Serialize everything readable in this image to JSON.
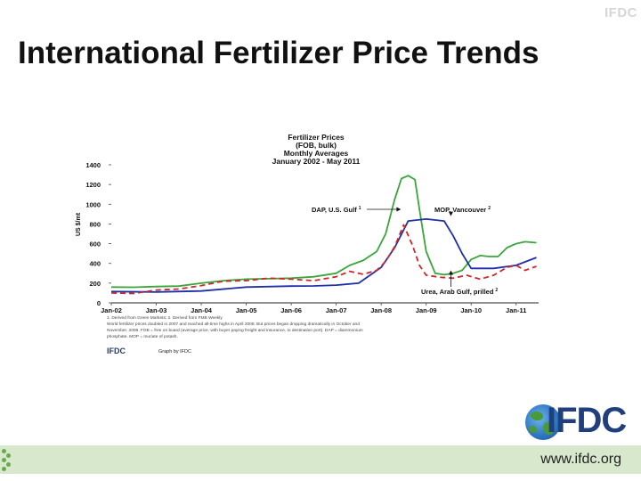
{
  "corner_logo": "IFDC",
  "slide_title": "International Fertilizer Price Trends",
  "brand_logo": "IFDC",
  "website": "www.ifdc.org",
  "colors": {
    "dap": "#3aa53a",
    "mop": "#1f2fa8",
    "urea": "#d0262a"
  },
  "chart_data": {
    "type": "line",
    "title": [
      "Fertilizer Prices",
      "(FOB, bulk)",
      "Monthly Averages",
      "January 2002 - May 2011"
    ],
    "ylabel": "US $/mt",
    "ylim": [
      0,
      1400
    ],
    "yticks": [
      0,
      200,
      400,
      600,
      800,
      1000,
      1200,
      1400
    ],
    "xlim": [
      2002.0,
      2011.5
    ],
    "xticks": [
      {
        "x": 2002,
        "label": "Jan-02"
      },
      {
        "x": 2003,
        "label": "Jan-03"
      },
      {
        "x": 2004,
        "label": "Jan-04"
      },
      {
        "x": 2005,
        "label": "Jan-05"
      },
      {
        "x": 2006,
        "label": "Jan-06"
      },
      {
        "x": 2007,
        "label": "Jan-07"
      },
      {
        "x": 2008,
        "label": "Jan-08"
      },
      {
        "x": 2009,
        "label": "Jan-09"
      },
      {
        "x": 2010,
        "label": "Jan-10"
      },
      {
        "x": 2011,
        "label": "Jan-11"
      }
    ],
    "series": [
      {
        "name": "DAP, U.S. Gulf",
        "color": "#3aa53a",
        "dash": "",
        "points": [
          [
            2002.0,
            160
          ],
          [
            2002.5,
            158
          ],
          [
            2003.0,
            165
          ],
          [
            2003.5,
            170
          ],
          [
            2004.0,
            200
          ],
          [
            2004.5,
            225
          ],
          [
            2005.0,
            240
          ],
          [
            2005.5,
            245
          ],
          [
            2006.0,
            250
          ],
          [
            2006.5,
            265
          ],
          [
            2007.0,
            300
          ],
          [
            2007.3,
            380
          ],
          [
            2007.6,
            430
          ],
          [
            2007.9,
            520
          ],
          [
            2008.1,
            700
          ],
          [
            2008.3,
            1050
          ],
          [
            2008.45,
            1260
          ],
          [
            2008.6,
            1290
          ],
          [
            2008.75,
            1250
          ],
          [
            2008.85,
            950
          ],
          [
            2009.0,
            520
          ],
          [
            2009.2,
            300
          ],
          [
            2009.4,
            285
          ],
          [
            2009.6,
            300
          ],
          [
            2009.8,
            330
          ],
          [
            2010.0,
            440
          ],
          [
            2010.2,
            480
          ],
          [
            2010.4,
            470
          ],
          [
            2010.6,
            470
          ],
          [
            2010.8,
            560
          ],
          [
            2011.0,
            600
          ],
          [
            2011.2,
            620
          ],
          [
            2011.45,
            610
          ]
        ]
      },
      {
        "name": "MOP, Vancouver",
        "color": "#1f2fa8",
        "dash": "",
        "points": [
          [
            2002.0,
            115
          ],
          [
            2003.0,
            110
          ],
          [
            2004.0,
            120
          ],
          [
            2005.0,
            160
          ],
          [
            2006.0,
            170
          ],
          [
            2006.5,
            172
          ],
          [
            2007.0,
            180
          ],
          [
            2007.5,
            200
          ],
          [
            2008.0,
            360
          ],
          [
            2008.3,
            560
          ],
          [
            2008.6,
            830
          ],
          [
            2009.0,
            850
          ],
          [
            2009.4,
            830
          ],
          [
            2009.6,
            680
          ],
          [
            2009.8,
            500
          ],
          [
            2010.0,
            350
          ],
          [
            2010.5,
            350
          ],
          [
            2011.0,
            380
          ],
          [
            2011.45,
            460
          ]
        ]
      },
      {
        "name": "Urea, Arab Gulf, prilled",
        "color": "#d0262a",
        "dash": "6,4",
        "points": [
          [
            2002.0,
            100
          ],
          [
            2002.5,
            95
          ],
          [
            2003.0,
            130
          ],
          [
            2003.5,
            140
          ],
          [
            2004.0,
            175
          ],
          [
            2004.5,
            220
          ],
          [
            2005.0,
            225
          ],
          [
            2005.5,
            250
          ],
          [
            2006.0,
            240
          ],
          [
            2006.5,
            225
          ],
          [
            2007.0,
            265
          ],
          [
            2007.3,
            320
          ],
          [
            2007.6,
            290
          ],
          [
            2007.9,
            330
          ],
          [
            2008.1,
            420
          ],
          [
            2008.3,
            570
          ],
          [
            2008.5,
            790
          ],
          [
            2008.7,
            580
          ],
          [
            2008.85,
            380
          ],
          [
            2009.0,
            280
          ],
          [
            2009.3,
            260
          ],
          [
            2009.6,
            250
          ],
          [
            2009.9,
            280
          ],
          [
            2010.2,
            240
          ],
          [
            2010.5,
            280
          ],
          [
            2010.8,
            360
          ],
          [
            2011.0,
            380
          ],
          [
            2011.2,
            330
          ],
          [
            2011.45,
            370
          ]
        ]
      }
    ],
    "annotations": [
      {
        "text": "DAP, U.S. Gulf",
        "sup": "1"
      },
      {
        "text": "MOP, Vancouver",
        "sup": "2"
      },
      {
        "text": "Urea, Arab Gulf, prilled",
        "sup": "2"
      }
    ],
    "footnotes": [
      "1. Derived from Green Markets; 2. Derived from FMB Weekly",
      "World fertilizer prices doubled in 2007 and reached all-time highs in April 2008. But prices began dropping dramatically in October and",
      "November, 2008. FOB = free on board (average price, with buyer paying freight and insurance, to destination port). DAP = diammonium",
      "phosphate. MOP = muriate of potash."
    ],
    "credit_logo": "IFDC",
    "credit": "Graph by IFDC"
  }
}
